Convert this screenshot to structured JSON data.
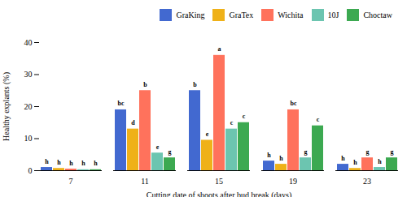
{
  "chart_data": {
    "type": "bar",
    "xlabel": "Cutting date of shoots after bud break (days)",
    "ylabel": "Healthy explants (%)",
    "categories": [
      "7",
      "11",
      "15",
      "19",
      "23"
    ],
    "series": [
      {
        "name": "GraKing",
        "values": [
          1.0,
          19.0,
          25.0,
          3.0,
          2.0
        ],
        "letters": [
          "h",
          "bc",
          "b",
          "h",
          "h"
        ]
      },
      {
        "name": "GraTex",
        "values": [
          0.7,
          13.0,
          9.5,
          2.0,
          0.7
        ],
        "letters": [
          "h",
          "d",
          "e",
          "h",
          "h"
        ]
      },
      {
        "name": "Wichita",
        "values": [
          0.5,
          25.0,
          36.0,
          19.0,
          4.0
        ],
        "letters": [
          "h",
          "b",
          "a",
          "bc",
          "g"
        ]
      },
      {
        "name": "10J",
        "values": [
          0.3,
          5.5,
          13.0,
          4.0,
          1.0
        ],
        "letters": [
          "h",
          "e",
          "c",
          "g",
          "h"
        ]
      },
      {
        "name": "Choctaw",
        "values": [
          0.3,
          4.0,
          15.0,
          14.0,
          4.0
        ],
        "letters": [
          "h",
          "g",
          "c",
          "c",
          "g"
        ]
      }
    ],
    "ylim": [
      0,
      40
    ],
    "yticks": [
      0,
      10,
      20,
      30,
      40
    ],
    "grid": false,
    "legend": "upper right"
  }
}
